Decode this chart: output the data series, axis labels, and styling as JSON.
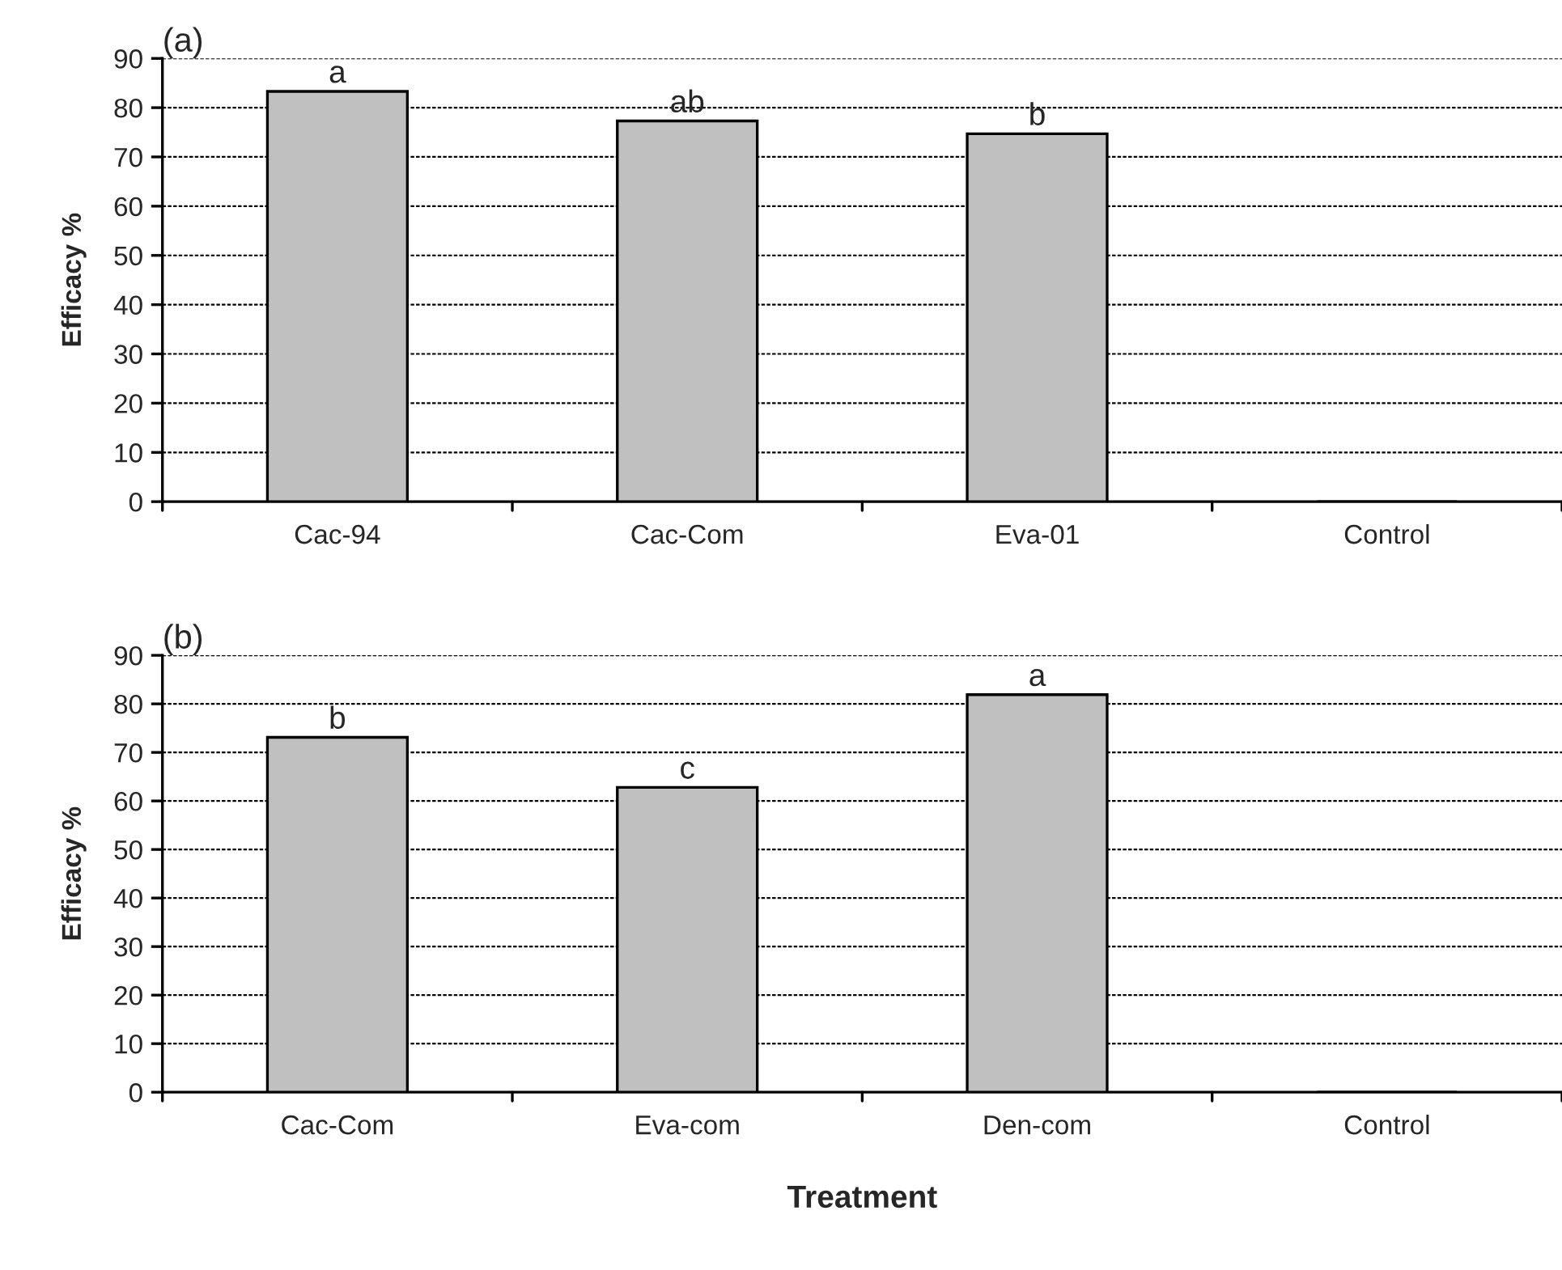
{
  "chart_data": [
    {
      "type": "bar",
      "title": "(a)",
      "ylabel": "Efficacy %",
      "categories": [
        "Cac-94",
        "Cac-Com",
        "Eva-01",
        "Control"
      ],
      "values": [
        83.3,
        77.3,
        74.7,
        0
      ],
      "color": "#c0c0c0",
      "ylim": [
        0,
        90
      ],
      "yticks": [
        0,
        10,
        20,
        30,
        40,
        50,
        60,
        70,
        80,
        90
      ],
      "grid": "y",
      "annotations": [
        {
          "text": "a",
          "x": "Cac-94",
          "y": 83.3
        },
        {
          "text": "ab",
          "x": "Cac-Com",
          "y": 77.3
        },
        {
          "text": "b",
          "x": "Eva-01",
          "y": 74.7
        }
      ]
    },
    {
      "type": "bar",
      "title": "(b)",
      "ylabel": "Efficacy %",
      "xlabel": "Treatment",
      "categories": [
        "Cac-Com",
        "Eva-com",
        "Den-com",
        "Control"
      ],
      "values": [
        73.1,
        62.8,
        81.9,
        0
      ],
      "color": "#c0c0c0",
      "ylim": [
        0,
        90
      ],
      "yticks": [
        0,
        10,
        20,
        30,
        40,
        50,
        60,
        70,
        80,
        90
      ],
      "grid": "y",
      "annotations": [
        {
          "text": "b",
          "x": "Cac-Com",
          "y": 73.1
        },
        {
          "text": "c",
          "x": "Eva-com",
          "y": 62.8
        },
        {
          "text": "a",
          "x": "Den-com",
          "y": 81.9
        }
      ]
    }
  ]
}
